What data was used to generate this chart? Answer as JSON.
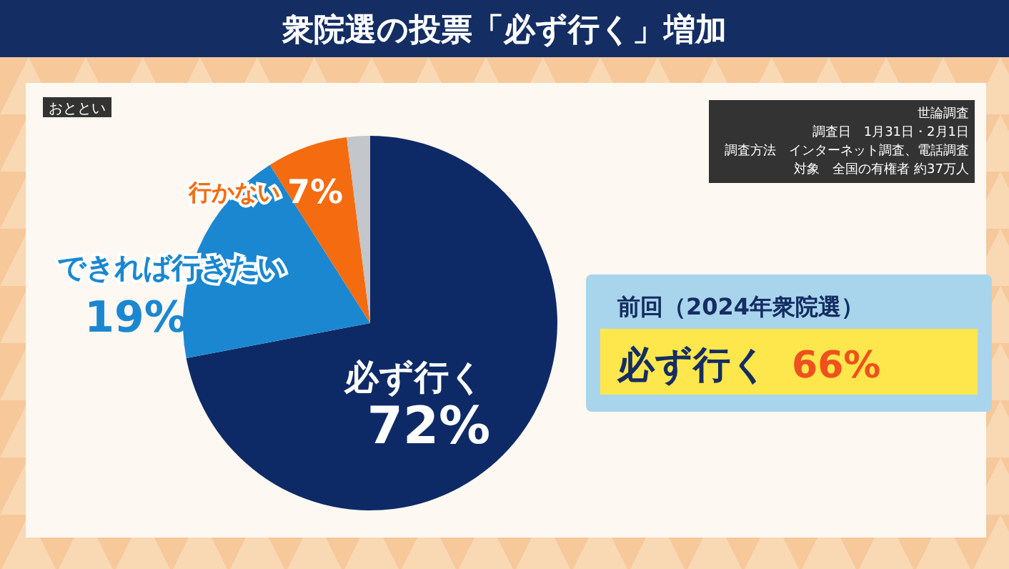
{
  "chart_data": {
    "type": "pie",
    "title": "衆院選の投票「必ず行く」増加",
    "categories": [
      "必ず行く",
      "できれば行きたい",
      "行かない",
      null
    ],
    "values": [
      72,
      19,
      7,
      2
    ],
    "colors": [
      "#0e2a66",
      "#1b87d0",
      "#f56c10",
      "#c3c6ca"
    ],
    "value_labels": [
      "72%",
      "19%",
      "7%",
      null
    ],
    "annotations": [
      "おととい",
      "世論調査",
      "調査日　1月31日・2月1日",
      "調査方法　インターネット調査、電話調査",
      "対象　全国の有権者 約37万人",
      "前回（2024年衆院選）",
      "必ず行く 66%"
    ]
  }
}
